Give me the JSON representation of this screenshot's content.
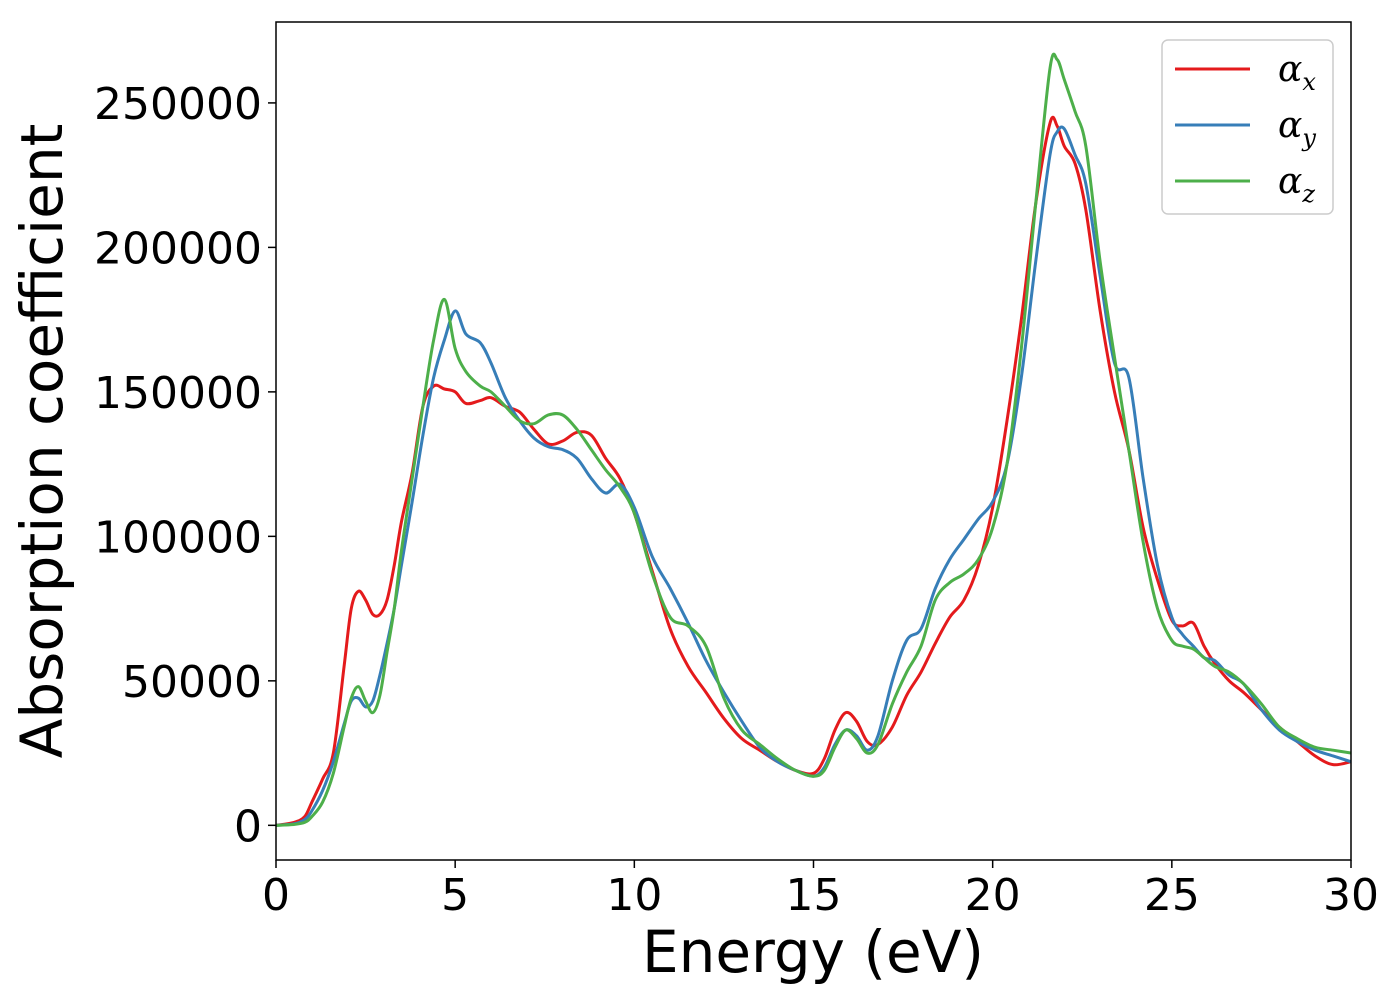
{
  "chart_data": {
    "type": "line",
    "xlabel": "Energy (eV)",
    "ylabel": "Absorption coefficient",
    "xlim": [
      0,
      30
    ],
    "ylim": [
      -12000,
      278000
    ],
    "xticks": [
      0,
      5,
      10,
      15,
      20,
      25,
      30
    ],
    "xtick_labels": [
      "0",
      "5",
      "10",
      "15",
      "20",
      "25",
      "30"
    ],
    "yticks": [
      0,
      50000,
      100000,
      150000,
      200000,
      250000
    ],
    "ytick_labels": [
      "0",
      "50000",
      "100000",
      "150000",
      "200000",
      "250000"
    ],
    "grid": false,
    "legend_position": "top-right",
    "series": [
      {
        "name": "αx",
        "symbol": "α",
        "subscript": "x",
        "color": "#e41a1c",
        "x": [
          0,
          0.5,
          0.8,
          1.0,
          1.3,
          1.6,
          1.9,
          2.1,
          2.3,
          2.5,
          2.7,
          2.9,
          3.1,
          3.3,
          3.5,
          3.8,
          4.1,
          4.4,
          4.7,
          5.0,
          5.3,
          5.7,
          6.0,
          6.4,
          6.8,
          7.2,
          7.6,
          8.0,
          8.4,
          8.8,
          9.2,
          9.6,
          10.0,
          10.5,
          11.0,
          11.5,
          12.0,
          12.5,
          13.0,
          13.5,
          14.0,
          14.5,
          15.0,
          15.3,
          15.6,
          15.9,
          16.2,
          16.5,
          16.8,
          17.2,
          17.6,
          18.0,
          18.4,
          18.8,
          19.2,
          19.6,
          20.0,
          20.4,
          20.8,
          21.2,
          21.6,
          21.8,
          22.0,
          22.3,
          22.6,
          23.0,
          23.4,
          23.8,
          24.2,
          24.6,
          25.0,
          25.3,
          25.6,
          25.9,
          26.2,
          26.6,
          27.0,
          27.5,
          28.0,
          28.5,
          29.0,
          29.5,
          30.0
        ],
        "values": [
          0,
          1000,
          3000,
          8000,
          16000,
          25000,
          55000,
          75000,
          81000,
          78000,
          73000,
          73000,
          78000,
          90000,
          105000,
          122000,
          145000,
          152000,
          151000,
          150000,
          146000,
          147000,
          148000,
          145000,
          143000,
          137000,
          132000,
          133000,
          136000,
          135000,
          127000,
          120000,
          108000,
          88000,
          68000,
          55000,
          46000,
          37000,
          30000,
          26000,
          22000,
          19000,
          18000,
          23000,
          33000,
          39000,
          36000,
          29000,
          28000,
          34000,
          45000,
          53000,
          63000,
          72000,
          78000,
          90000,
          110000,
          140000,
          175000,
          215000,
          243000,
          242000,
          235000,
          229000,
          213000,
          178000,
          150000,
          130000,
          103000,
          85000,
          71000,
          69000,
          70000,
          62000,
          56000,
          50000,
          46000,
          40000,
          34000,
          29000,
          24000,
          21000,
          22000
        ],
        "dash": ""
      },
      {
        "name": "αy",
        "symbol": "α",
        "subscript": "y",
        "color": "#377eb8",
        "x": [
          0,
          0.5,
          0.8,
          1.0,
          1.3,
          1.6,
          1.9,
          2.1,
          2.3,
          2.5,
          2.7,
          2.9,
          3.1,
          3.3,
          3.5,
          3.8,
          4.1,
          4.4,
          4.7,
          5.0,
          5.3,
          5.7,
          6.0,
          6.4,
          6.8,
          7.2,
          7.6,
          8.0,
          8.4,
          8.8,
          9.2,
          9.6,
          10.0,
          10.5,
          11.0,
          11.5,
          12.0,
          12.5,
          13.0,
          13.5,
          14.0,
          14.5,
          15.0,
          15.3,
          15.6,
          15.9,
          16.2,
          16.5,
          16.8,
          17.2,
          17.6,
          18.0,
          18.4,
          18.8,
          19.2,
          19.6,
          20.0,
          20.4,
          20.8,
          21.2,
          21.6,
          21.8,
          22.0,
          22.3,
          22.6,
          23.0,
          23.4,
          23.8,
          24.2,
          24.6,
          25.0,
          25.3,
          25.6,
          25.9,
          26.2,
          26.6,
          27.0,
          27.5,
          28.0,
          28.5,
          29.0,
          29.5,
          30.0
        ],
        "values": [
          0,
          500,
          2000,
          5000,
          12000,
          22000,
          35000,
          43000,
          44000,
          41000,
          43000,
          52000,
          63000,
          75000,
          90000,
          112000,
          135000,
          155000,
          168000,
          178000,
          170000,
          167000,
          160000,
          148000,
          140000,
          134000,
          131000,
          130000,
          127000,
          120000,
          115000,
          118000,
          110000,
          93000,
          82000,
          70000,
          57000,
          46000,
          36000,
          27000,
          22000,
          19000,
          17000,
          20000,
          28000,
          33000,
          31000,
          26000,
          31000,
          50000,
          64000,
          68000,
          82000,
          92000,
          99000,
          106000,
          112000,
          125000,
          155000,
          195000,
          232000,
          240000,
          241000,
          232000,
          222000,
          190000,
          160000,
          155000,
          120000,
          90000,
          72000,
          66000,
          62000,
          58000,
          57000,
          52000,
          49000,
          40000,
          33000,
          29000,
          26000,
          24000,
          22000
        ],
        "dash": ""
      },
      {
        "name": "αz",
        "symbol": "α",
        "subscript": "z",
        "color": "#4daf4a",
        "x": [
          0,
          0.5,
          0.8,
          1.0,
          1.3,
          1.6,
          1.9,
          2.1,
          2.3,
          2.5,
          2.7,
          2.9,
          3.1,
          3.3,
          3.5,
          3.8,
          4.1,
          4.4,
          4.7,
          5.0,
          5.3,
          5.7,
          6.0,
          6.4,
          6.8,
          7.2,
          7.6,
          8.0,
          8.4,
          8.8,
          9.2,
          9.6,
          10.0,
          10.5,
          11.0,
          11.5,
          12.0,
          12.5,
          13.0,
          13.5,
          14.0,
          14.5,
          15.0,
          15.3,
          15.6,
          15.9,
          16.2,
          16.5,
          16.8,
          17.2,
          17.6,
          18.0,
          18.4,
          18.8,
          19.2,
          19.6,
          20.0,
          20.4,
          20.8,
          21.2,
          21.6,
          21.8,
          22.0,
          22.3,
          22.6,
          23.0,
          23.4,
          23.8,
          24.2,
          24.6,
          25.0,
          25.3,
          25.6,
          25.9,
          26.2,
          26.6,
          27.0,
          27.5,
          28.0,
          28.5,
          29.0,
          29.5,
          30.0
        ],
        "values": [
          0,
          300,
          1000,
          3000,
          8000,
          18000,
          34000,
          44000,
          48000,
          43000,
          39000,
          45000,
          60000,
          75000,
          95000,
          120000,
          145000,
          168000,
          182000,
          165000,
          157000,
          152000,
          150000,
          145000,
          140000,
          139000,
          142000,
          142000,
          137000,
          130000,
          123000,
          117000,
          108000,
          87000,
          72000,
          69000,
          62000,
          44000,
          33000,
          28000,
          23000,
          19000,
          17000,
          19000,
          27000,
          33000,
          30000,
          25000,
          28000,
          42000,
          53000,
          62000,
          78000,
          84000,
          87000,
          92000,
          103000,
          125000,
          165000,
          215000,
          262000,
          265000,
          258000,
          247000,
          235000,
          195000,
          162000,
          130000,
          98000,
          75000,
          64000,
          62000,
          61000,
          58000,
          55000,
          53000,
          49000,
          42000,
          34000,
          30000,
          27000,
          26000,
          25000
        ],
        "dash": ""
      }
    ]
  }
}
